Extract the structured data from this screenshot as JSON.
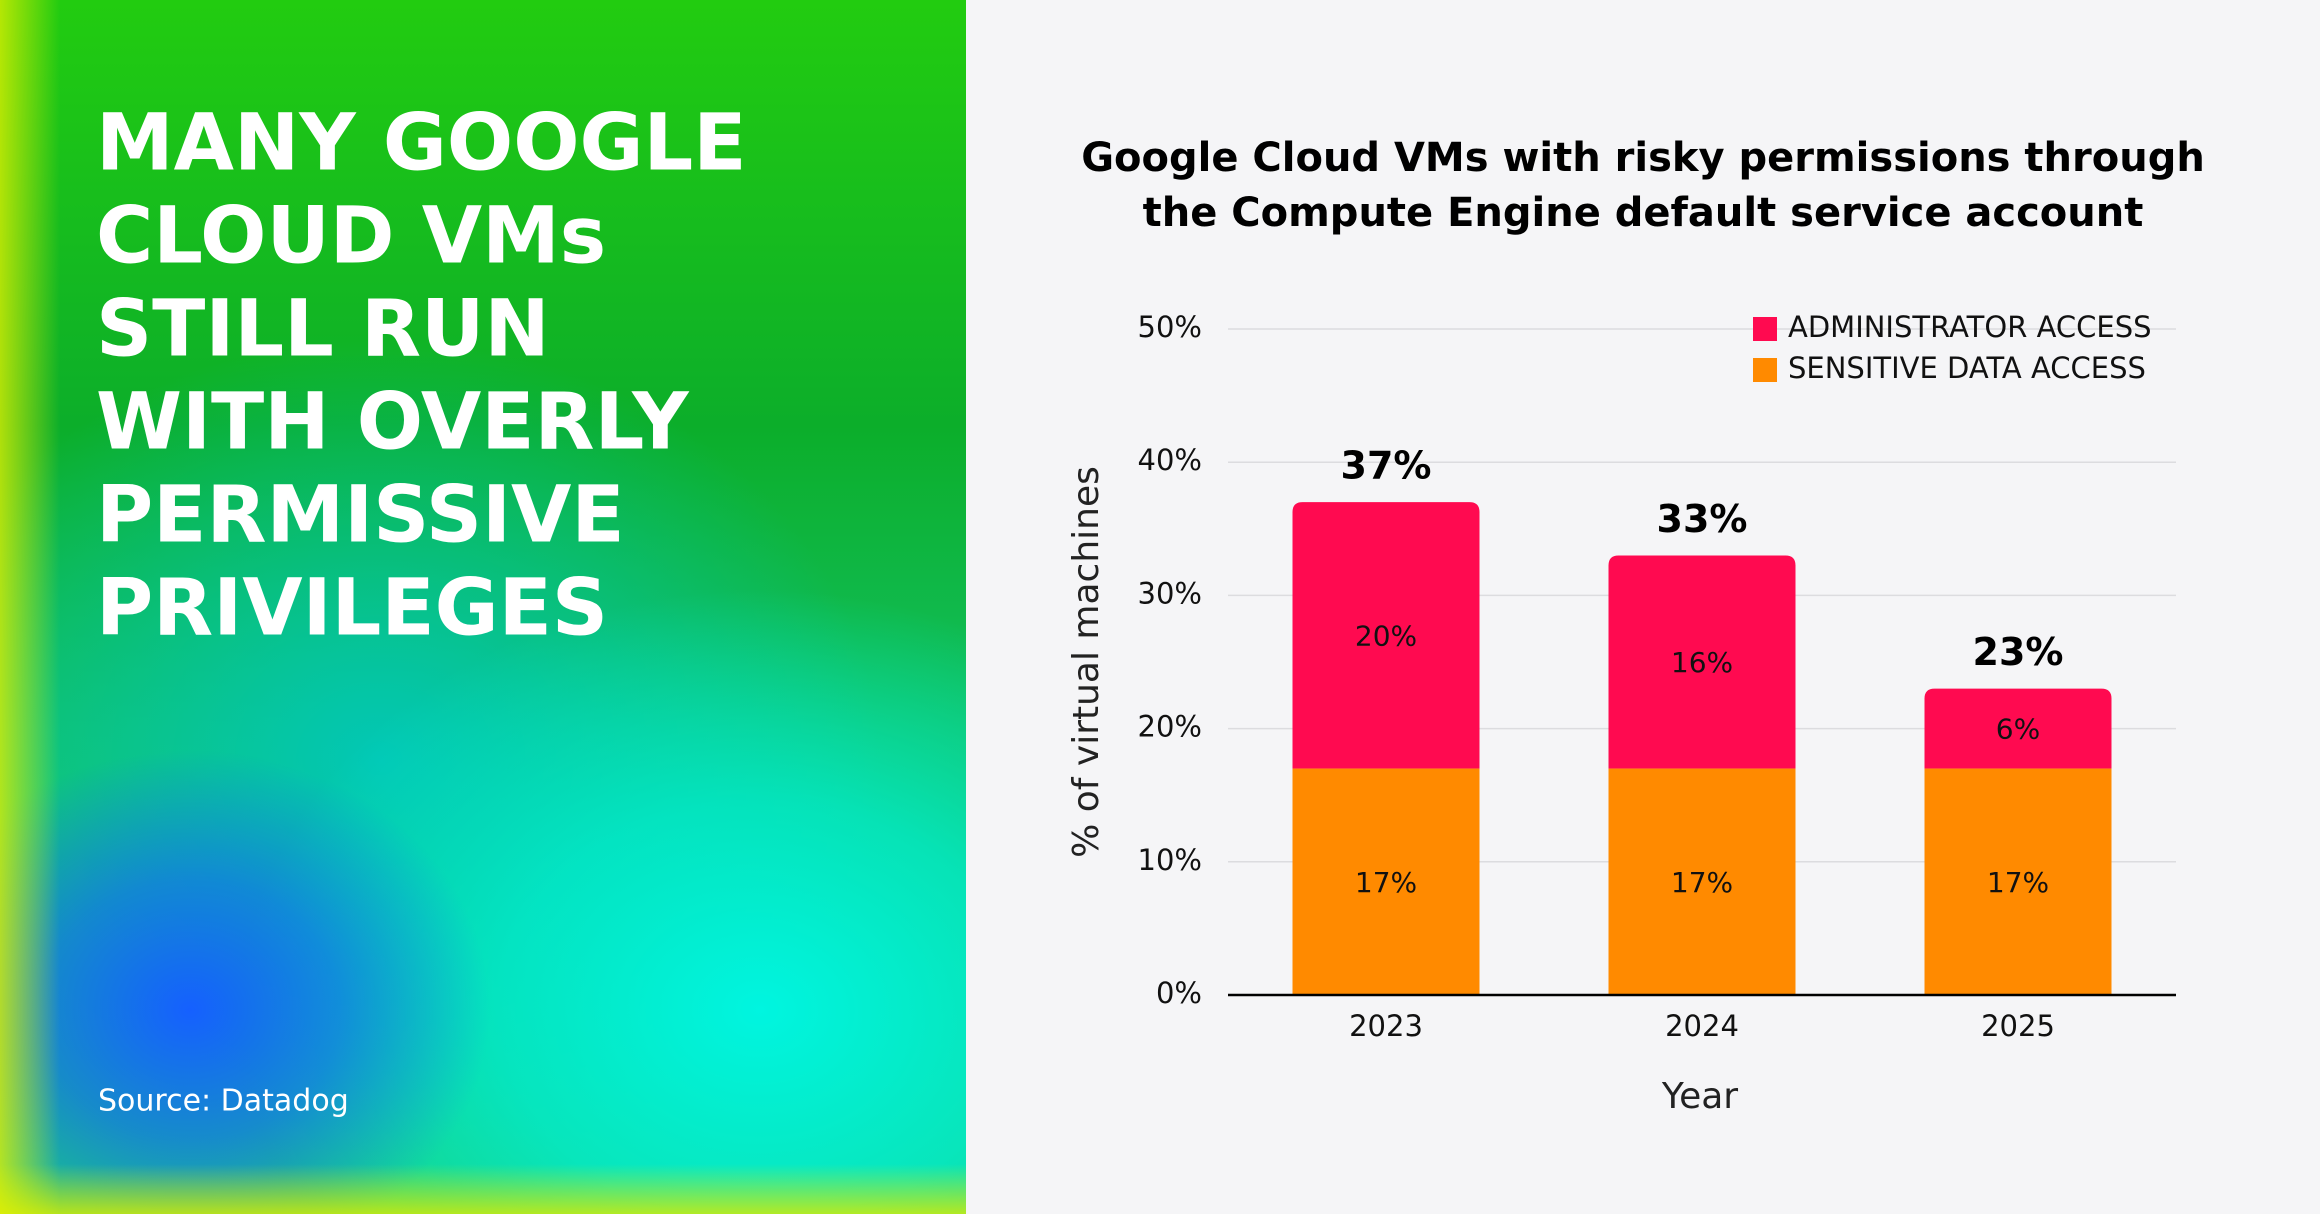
{
  "headline": [
    "MANY GOOGLE",
    "CLOUD VMs",
    "STILL RUN",
    "WITH OVERLY",
    "PERMISSIVE",
    "PRIVILEGES"
  ],
  "source": "Source: Datadog",
  "chart_data": {
    "type": "stacked_bar",
    "title": [
      "Google Cloud VMs with risky permissions through",
      "the Compute Engine default service account"
    ],
    "x_label": "Year",
    "y_label": "% of virtual machines",
    "categories": [
      "2023",
      "2024",
      "2025"
    ],
    "series": [
      {
        "name": "SENSITIVE DATA ACCESS",
        "color": "#ff8a00",
        "values": [
          17,
          17,
          17
        ],
        "value_labels": [
          "17%",
          "17%",
          "17%"
        ]
      },
      {
        "name": "ADMINISTRATOR ACCESS",
        "color": "#ff0a50",
        "values": [
          20,
          16,
          6
        ],
        "value_labels": [
          "20%",
          "16%",
          "6%"
        ]
      }
    ],
    "totals": [
      37,
      33,
      23
    ],
    "total_labels": [
      "37%",
      "33%",
      "23%"
    ],
    "ylim": [
      0,
      50
    ],
    "yticks": [
      {
        "value": 0,
        "label": "0%"
      },
      {
        "value": 10,
        "label": "10%"
      },
      {
        "value": 20,
        "label": "20%"
      },
      {
        "value": 30,
        "label": "30%"
      },
      {
        "value": 40,
        "label": "40%"
      },
      {
        "value": 50,
        "label": "50%"
      }
    ],
    "grid": true,
    "legend": "top-right"
  }
}
